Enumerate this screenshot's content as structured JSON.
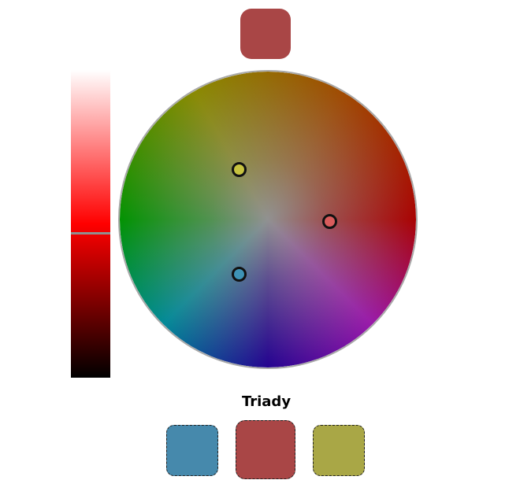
{
  "selected_color": "#A94646",
  "lightness_slider": {
    "value": 0.53,
    "gradient_top": "#FFFFFF",
    "gradient_mid": "#FF0000",
    "gradient_bottom": "#000000",
    "handle_color": "#8F8F8F"
  },
  "color_wheel": {
    "markers": [
      {
        "name": "triad-marker-1",
        "color": "#C6C23F",
        "angle_deg": 120,
        "radius": 0.41
      },
      {
        "name": "triad-marker-2",
        "color": "#D85C5C",
        "angle_deg": 0,
        "radius": 0.41
      },
      {
        "name": "triad-marker-3",
        "color": "#3E93B5",
        "angle_deg": 240,
        "radius": 0.41
      }
    ]
  },
  "scheme": {
    "label": "Triady",
    "swatches": [
      "#4689AC",
      "#A94646",
      "#A9A746"
    ]
  }
}
